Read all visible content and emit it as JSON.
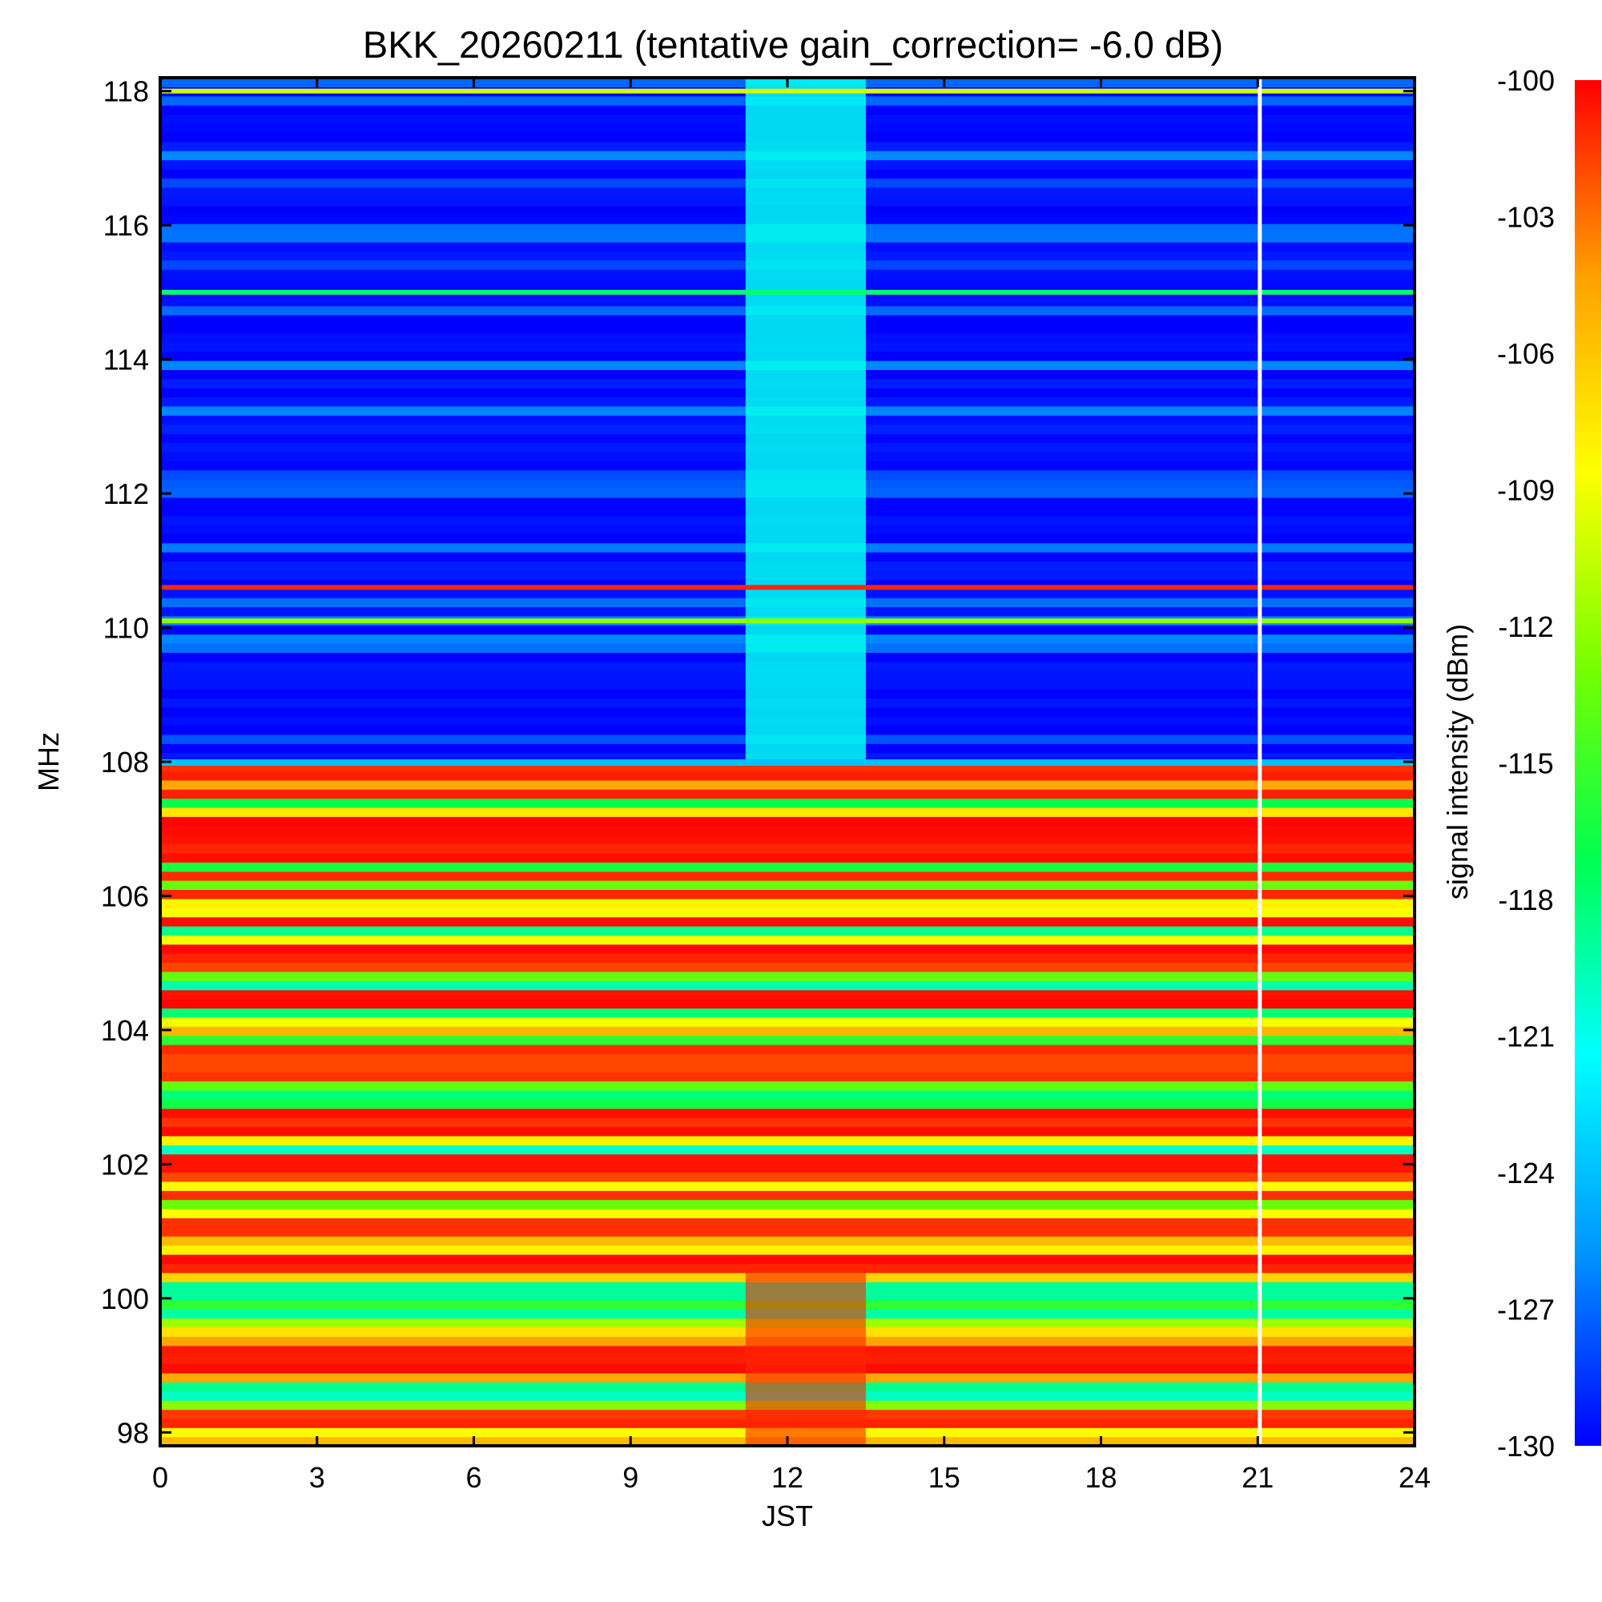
{
  "chart_data": {
    "type": "heatmap",
    "title": "BKK_20260211 (tentative gain_correction= -6.0 dB)",
    "xlabel": "JST",
    "ylabel": "MHz",
    "colorbar_label": "signal intensity (dBm)",
    "xlim": [
      0,
      24
    ],
    "ylim": [
      97.8,
      118.2
    ],
    "x_ticks": [
      "0",
      "3",
      "6",
      "9",
      "12",
      "15",
      "18",
      "21",
      "24"
    ],
    "y_ticks": [
      "98",
      "100",
      "102",
      "104",
      "106",
      "108",
      "110",
      "112",
      "114",
      "116",
      "118"
    ],
    "colorbar_range": [
      -130,
      -100
    ],
    "colorbar_ticks": [
      "-100",
      "-103",
      "-106",
      "-109",
      "-112",
      "-115",
      "-118",
      "-121",
      "-124",
      "-127",
      "-130"
    ],
    "colormap": [
      "#0000ff",
      "#0096ff",
      "#00ffff",
      "#00ff50",
      "#78ff00",
      "#ffff00",
      "#ffa000",
      "#ff0000"
    ],
    "regions": [
      {
        "name": "FM broadcast band",
        "freq_range_mhz": [
          97.8,
          108.0
        ],
        "typical_level_dbm": -103
      },
      {
        "name": "Aeronautical band",
        "freq_range_mhz": [
          108.0,
          118.2
        ],
        "typical_level_dbm": -127
      },
      {
        "name": "elevated noise interval",
        "time_range_h": [
          11.2,
          13.5
        ],
        "typical_level_dbm": -121
      },
      {
        "name": "data gap",
        "time_range_h": [
          21.0,
          21.05
        ]
      }
    ],
    "strong_lines_mhz": [
      118.0,
      110.6,
      110.1,
      115.0
    ]
  }
}
